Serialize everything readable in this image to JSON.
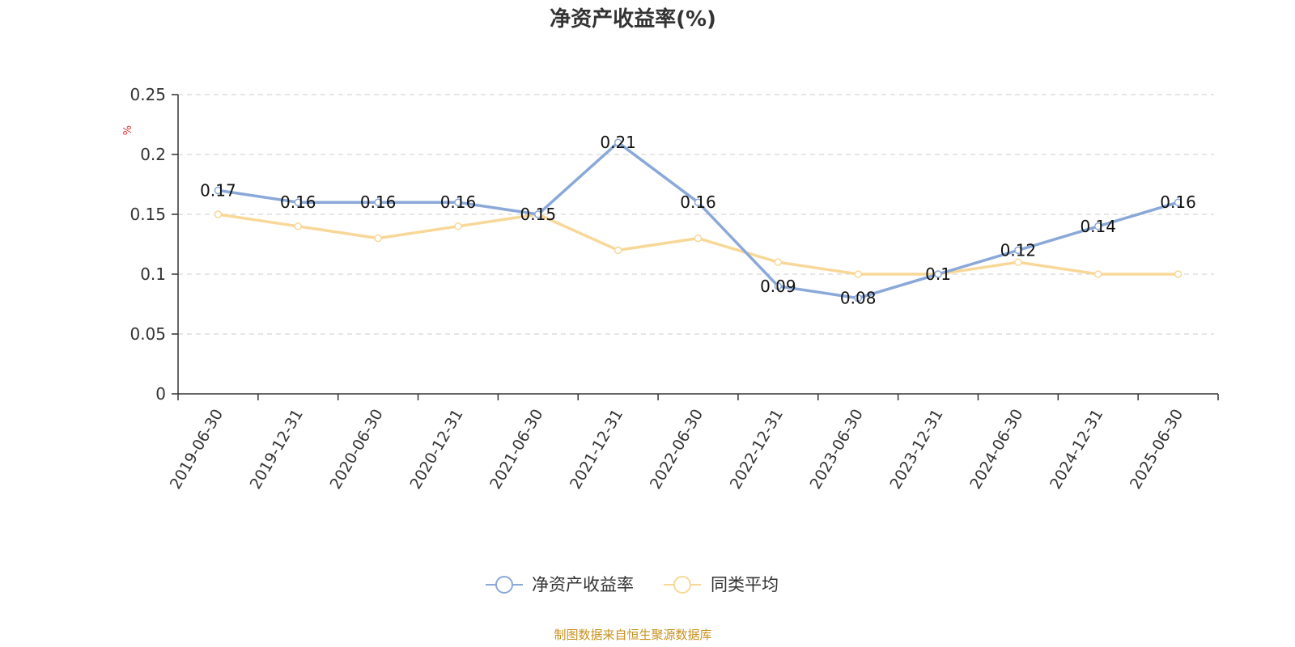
{
  "chart_data": {
    "type": "line",
    "title": "净资产收益率(%)",
    "ylabel": "%",
    "xlabel": "",
    "categories": [
      "2019-06-30",
      "2019-12-31",
      "2020-06-30",
      "2020-12-31",
      "2021-06-30",
      "2021-12-31",
      "2022-06-30",
      "2022-12-31",
      "2023-06-30",
      "2023-12-31",
      "2024-06-30",
      "2024-12-31",
      "2025-06-30"
    ],
    "ylim": [
      0,
      0.25
    ],
    "yticks": [
      "0",
      "0.05",
      "0.1",
      "0.15",
      "0.2",
      "0.25"
    ],
    "grid": true,
    "legend_position": "bottom",
    "series": [
      {
        "name": "净资产收益率",
        "color": "#8aa8d8",
        "values": [
          0.17,
          0.16,
          0.16,
          0.16,
          0.15,
          0.21,
          0.16,
          0.09,
          0.08,
          0.1,
          0.12,
          0.14,
          0.16
        ],
        "labels": [
          "0.17",
          "0.16",
          "0.16",
          "0.16",
          "0.15",
          "0.21",
          "0.16",
          "0.09",
          "0.08",
          "0.1",
          "0.12",
          "0.14",
          "0.16"
        ]
      },
      {
        "name": "同类平均",
        "color": "#f8d898",
        "values": [
          0.15,
          0.14,
          0.13,
          0.14,
          0.15,
          0.12,
          0.13,
          0.11,
          0.1,
          0.1,
          0.11,
          0.1,
          0.1
        ]
      }
    ]
  },
  "footer": {
    "source": "制图数据来自恒生聚源数据库"
  }
}
